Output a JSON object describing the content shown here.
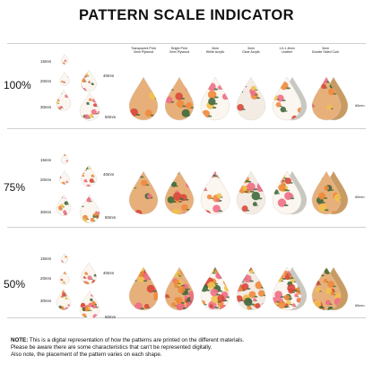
{
  "title": "PATTERN SCALE INDICATOR",
  "sections": [
    {
      "label": "100%",
      "sizes": [
        "15mm",
        "20mm",
        "30mm"
      ],
      "right_sizes": [
        "40mm",
        "50mm"
      ],
      "dim": "60mm"
    },
    {
      "label": "75%",
      "sizes": [
        "15mm",
        "20mm",
        "30mm"
      ],
      "right_sizes": [
        "40mm",
        "50mm"
      ],
      "dim": "60mm"
    },
    {
      "label": "50%",
      "sizes": [
        "15mm",
        "20mm",
        "30mm"
      ],
      "right_sizes": [
        "40mm",
        "50mm"
      ],
      "dim": "60mm"
    }
  ],
  "columns": [
    {
      "line1": "Transparent Print",
      "line2": "3mm Plywood"
    },
    {
      "line1": "Bright Print",
      "line2": "3mm Plywood"
    },
    {
      "line1": "3mm",
      "line2": "White Acrylic"
    },
    {
      "line1": "3mm",
      "line2": "Clear Acrylic"
    },
    {
      "line1": "1.6-1.8mm",
      "line2": "Leather"
    },
    {
      "line1": "3mm",
      "line2": "Double Sided Cork"
    }
  ],
  "note": {
    "label": "NOTE:",
    "line1": "This is a digital representation of how the patterns are printed on the different materials.",
    "line2": "Please be aware there are some characteristics that can't be represented digitally.",
    "line3": "Also note, the placement of the pattern varies on each shape."
  },
  "colors": {
    "wood": "#e7b07a",
    "cork": "#c99b62",
    "leather": "#c8c8c2",
    "white": "#fbf6ef",
    "clear": "#f2ece4",
    "pink": "#ef6f86",
    "orange": "#f08a3c",
    "red": "#d9483b",
    "green": "#3f6a3c",
    "yellow": "#f2c14e",
    "separator": "#cfcfcf"
  }
}
